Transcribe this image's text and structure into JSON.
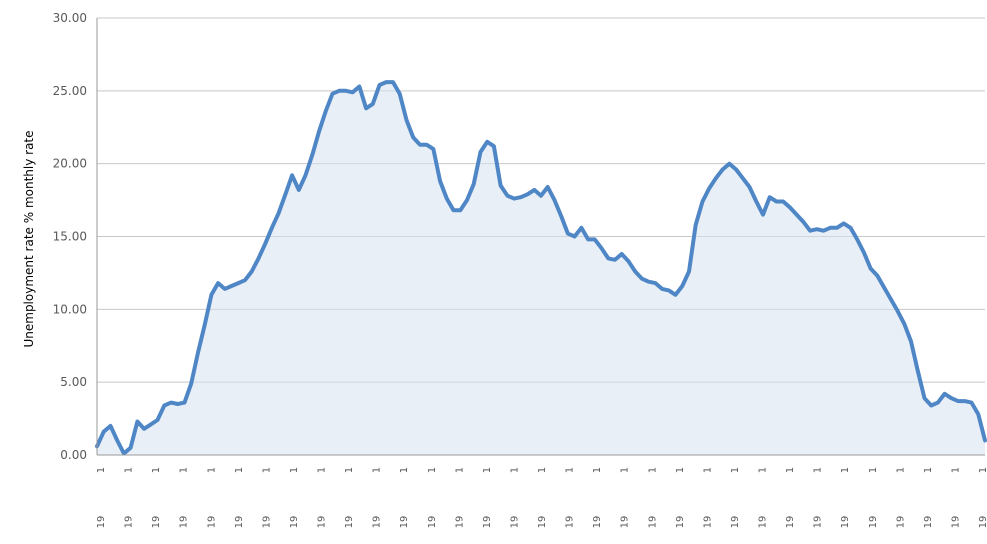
{
  "chart_data": {
    "type": "area",
    "title": "",
    "xlabel": "",
    "ylabel": "Unemployment rate % monthly rate",
    "ylim": [
      0,
      30
    ],
    "yticks": [
      "0.00",
      "5.00",
      "10.00",
      "15.00",
      "20.00",
      "25.00",
      "30.00"
    ],
    "grid": true,
    "legend": "none",
    "line_color": "#4f86c6",
    "fill_color": "#d6e2f0",
    "x_tick_labels_row1": [
      "1",
      "1",
      "1",
      "1",
      "1",
      "1",
      "1",
      "1",
      "1",
      "1",
      "1",
      "1",
      "1",
      "1",
      "1",
      "1",
      "1",
      "1",
      "1",
      "1",
      "1",
      "1",
      "1",
      "1",
      "1",
      "1",
      "1",
      "1",
      "1",
      "1",
      "1",
      "1",
      "1"
    ],
    "x_tick_labels_row2": [
      "19",
      "19",
      "19",
      "19",
      "19",
      "19",
      "19",
      "19",
      "19",
      "19",
      "19",
      "19",
      "19",
      "19",
      "19",
      "19",
      "19",
      "19",
      "19",
      "19",
      "19",
      "19",
      "19",
      "19",
      "19",
      "19",
      "19",
      "19",
      "19",
      "19",
      "19",
      "19",
      "19"
    ],
    "series": [
      {
        "values": [
          0.6,
          1.6,
          2.0,
          1.0,
          0.1,
          0.5,
          2.3,
          1.8,
          2.1,
          2.4,
          3.4,
          3.6,
          3.5,
          3.6,
          4.9,
          7.0,
          8.9,
          11.0,
          11.8,
          11.4,
          11.6,
          11.8,
          12.0,
          12.6,
          13.5,
          14.5,
          15.6,
          16.6,
          17.9,
          19.2,
          18.2,
          19.2,
          20.6,
          22.2,
          23.6,
          24.8,
          25.0,
          25.0,
          24.9,
          25.3,
          23.8,
          24.1,
          25.4,
          25.6,
          25.6,
          24.8,
          23.0,
          21.8,
          21.3,
          21.3,
          21.0,
          18.8,
          17.6,
          16.8,
          16.8,
          17.5,
          18.6,
          20.8,
          21.5,
          21.2,
          18.5,
          17.8,
          17.6,
          17.7,
          17.9,
          18.2,
          17.8,
          18.4,
          17.5,
          16.4,
          15.2,
          15.0,
          15.6,
          14.8,
          14.8,
          14.2,
          13.5,
          13.4,
          13.8,
          13.3,
          12.6,
          12.1,
          11.9,
          11.8,
          11.4,
          11.3,
          11.0,
          11.6,
          12.6,
          15.8,
          17.4,
          18.3,
          19.0,
          19.6,
          20.0,
          19.6,
          19.0,
          18.4,
          17.4,
          16.5,
          17.7,
          17.4,
          17.4,
          17.0,
          16.5,
          16.0,
          15.4,
          15.5,
          15.4,
          15.6,
          15.6,
          15.9,
          15.6,
          14.8,
          13.9,
          12.8,
          12.3,
          11.5,
          10.7,
          9.9,
          9.0,
          7.8,
          5.8,
          3.9,
          3.4,
          3.6,
          4.2,
          3.9,
          3.7,
          3.7,
          3.6,
          2.8,
          1.0
        ]
      }
    ]
  }
}
